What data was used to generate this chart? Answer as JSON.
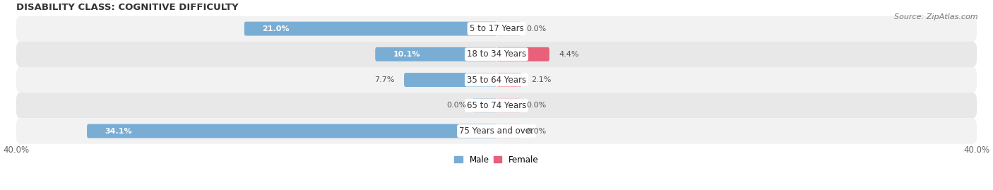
{
  "title": "DISABILITY CLASS: COGNITIVE DIFFICULTY",
  "source": "Source: ZipAtlas.com",
  "categories": [
    "5 to 17 Years",
    "18 to 34 Years",
    "35 to 64 Years",
    "65 to 74 Years",
    "75 Years and over"
  ],
  "male_values": [
    21.0,
    10.1,
    7.7,
    0.0,
    34.1
  ],
  "female_values": [
    0.0,
    4.4,
    2.1,
    0.0,
    0.0
  ],
  "male_label_values": [
    "21.0%",
    "10.1%",
    "7.7%",
    "0.0%",
    "34.1%"
  ],
  "female_label_values": [
    "0.0%",
    "4.4%",
    "2.1%",
    "0.0%",
    "0.0%"
  ],
  "male_color": "#7aadd4",
  "female_color_dark": "#e8607a",
  "female_color_light": "#f0a0b8",
  "row_bg_even": "#f2f2f2",
  "row_bg_odd": "#e8e8e8",
  "axis_max": 40.0,
  "bar_height": 0.55,
  "title_fontsize": 9.5,
  "label_fontsize": 8.5,
  "value_fontsize": 8,
  "tick_fontsize": 8.5,
  "source_fontsize": 8
}
